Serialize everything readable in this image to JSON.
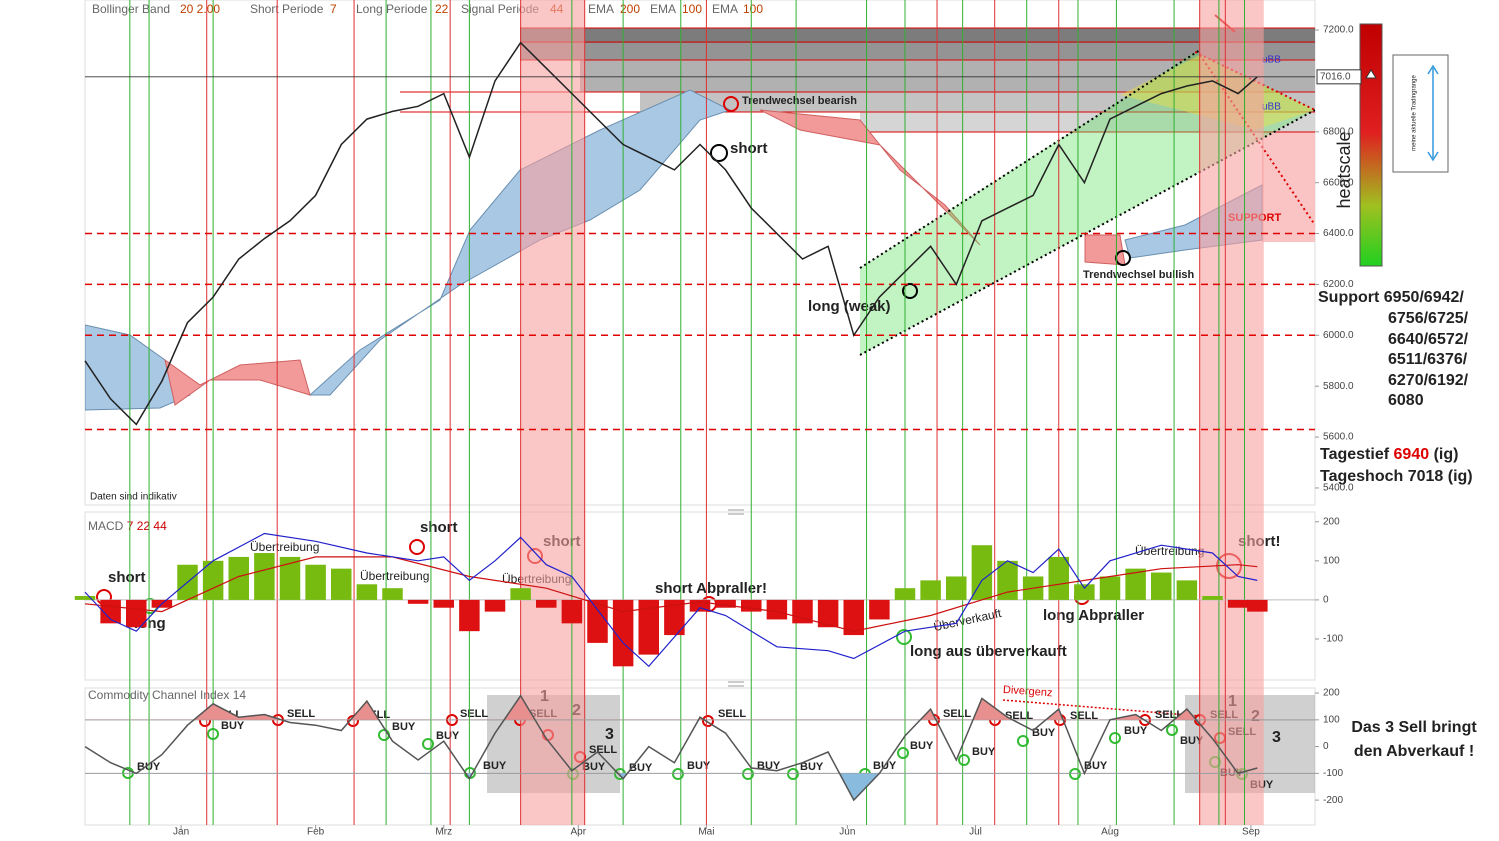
{
  "header": [
    "Bollinger Band",
    "20  2.00",
    "Short Periode",
    "7",
    "Long Periode",
    "22",
    "Signal Periode",
    "44",
    "EMA",
    "200",
    "EMA",
    "100",
    "EMA",
    "100"
  ],
  "price_annotations": [
    "Trendwechsel bearish",
    "short",
    "long (weak)",
    "Trendwechsel bullish",
    "SUPPORT",
    "uBB",
    "uBB",
    "Daten sind indikativ"
  ],
  "heatscale": "heatscale",
  "tradingrange": "meine aktuelle Tradingrange",
  "support_levels": [
    "Support 6950/6942/",
    "6756/6725/",
    "6640/6572/",
    "6511/6376/",
    "6270/6192/",
    "6080"
  ],
  "daily_low": {
    "label": "Tagestief",
    "value": "6940",
    "suffix": "(ig)"
  },
  "daily_high": "Tageshoch 7018 (ig)",
  "conclusion": [
    "Das 3 Sell bringt",
    "den Abverkauf !"
  ],
  "macd_annotations": [
    "short",
    "long",
    "Übertreibung",
    "Übertreibung",
    "short",
    "Übertreibung",
    "short",
    "short Abpraller!",
    "Überverkauft",
    "long aus überverkauft",
    "long Abpraller",
    "Übertreibung",
    "short!"
  ],
  "cci_annotations": [
    "Divergenz"
  ],
  "cci_signal_labels": [
    "BUY",
    "SELL",
    "BUY",
    "SELL",
    "SELL",
    "BUY",
    "BUY",
    "SELL",
    "BUY",
    "1",
    "SELL",
    "2",
    "3",
    "SELL",
    "BUY",
    "BUY",
    "BUY",
    "SELL",
    "BUY",
    "BUY",
    "BUY",
    "BUY",
    "SELL",
    "BUY",
    "SELL",
    "BUY",
    "SELL",
    "BUY",
    "BUY",
    "SELL",
    "BUY",
    "1",
    "SELL",
    "2",
    "SELL",
    "3",
    "BUY",
    "BUY"
  ],
  "chart_data": [
    {
      "type": "line",
      "color": "#222",
      "x": [
        0,
        4,
        8,
        12,
        16,
        20,
        24,
        28,
        32,
        36,
        40,
        44,
        48,
        52,
        56,
        60,
        64,
        68,
        72,
        76,
        80,
        84,
        88,
        92,
        96,
        100,
        104,
        108,
        112,
        116,
        120,
        124,
        128,
        132,
        136,
        140,
        144,
        148,
        152,
        156,
        160,
        164,
        168,
        172,
        176,
        180,
        183
      ],
      "values": [
        5900,
        5750,
        5650,
        5820,
        6050,
        6150,
        6300,
        6380,
        6450,
        6550,
        6750,
        6850,
        6880,
        6900,
        6950,
        6700,
        7000,
        7150,
        7050,
        6950,
        6850,
        6750,
        6700,
        6650,
        6750,
        6650,
        6500,
        6400,
        6300,
        6350,
        6000,
        6150,
        6250,
        6350,
        6200,
        6450,
        6500,
        6550,
        6750,
        6600,
        6850,
        6900,
        6950,
        6980,
        7000,
        6950,
        7016
      ],
      "xlim": [
        0,
        192
      ],
      "ylim": [
        5333,
        7318
      ],
      "yticks": [
        {
          "value": 5400,
          "label": "5400.0"
        },
        {
          "value": 5600,
          "label": "5600.0"
        },
        {
          "value": 5800,
          "label": "5800.0"
        },
        {
          "value": 6000,
          "label": "6000.0"
        },
        {
          "value": 6200,
          "label": "6200.0"
        },
        {
          "value": 6400,
          "label": "6400.0"
        },
        {
          "value": 6600,
          "label": "6600.0"
        },
        {
          "value": 6800,
          "label": "6800.0"
        },
        {
          "value": 7200,
          "label": "7200.0"
        }
      ],
      "last_price": {
        "value": 7016,
        "label": "7016.0"
      },
      "hlines": [
        6400,
        6200,
        6000,
        5630
      ],
      "hline_color": "#e00000",
      "sell_signals": [
        19,
        30,
        42,
        57,
        68,
        78,
        97,
        133,
        142,
        152,
        174,
        178
      ],
      "buy_signals": [
        7,
        10,
        20,
        47,
        54,
        60,
        76,
        84,
        93,
        104,
        111,
        122,
        128,
        137,
        147,
        155,
        161,
        170,
        177,
        181
      ],
      "sell_color": "#e03030",
      "buy_color": "#30b030",
      "highlight_ranges": [
        [
          68,
          78
        ],
        [
          174,
          184
        ]
      ],
      "highlight_color": "#f8a0a0"
    },
    {
      "type": "bar",
      "title": "MACD",
      "params": [
        "7",
        "22",
        "44"
      ],
      "x": [
        0,
        4,
        8,
        12,
        16,
        20,
        24,
        28,
        32,
        36,
        40,
        44,
        48,
        52,
        56,
        60,
        64,
        68,
        72,
        76,
        80,
        84,
        88,
        92,
        96,
        100,
        104,
        108,
        112,
        116,
        120,
        124,
        128,
        132,
        136,
        140,
        144,
        148,
        152,
        156,
        160,
        164,
        168,
        172,
        176,
        180,
        183
      ],
      "values": [
        10,
        -60,
        -70,
        -20,
        90,
        100,
        110,
        120,
        110,
        90,
        80,
        40,
        30,
        -10,
        -20,
        -80,
        -30,
        30,
        -20,
        -60,
        -110,
        -170,
        -140,
        -90,
        -30,
        -20,
        -30,
        -50,
        -60,
        -70,
        -90,
        -50,
        30,
        50,
        60,
        140,
        100,
        60,
        110,
        40,
        60,
        80,
        70,
        50,
        10,
        -20,
        -30
      ],
      "positive_color": "#77bb11",
      "negative_color": "#dd1111",
      "lines": [
        {
          "color": "#cc1111",
          "x": [
            0,
            12,
            24,
            36,
            48,
            60,
            72,
            84,
            96,
            108,
            120,
            132,
            144,
            156,
            168,
            180,
            183
          ],
          "values": [
            -10,
            -30,
            60,
            110,
            110,
            60,
            30,
            -30,
            -5,
            -30,
            -80,
            -40,
            20,
            50,
            80,
            90,
            85
          ]
        },
        {
          "color": "#2222cc",
          "x": [
            0,
            4,
            8,
            12,
            20,
            28,
            36,
            44,
            52,
            56,
            60,
            64,
            68,
            72,
            76,
            84,
            88,
            96,
            100,
            108,
            116,
            120,
            128,
            136,
            140,
            144,
            148,
            152,
            156,
            160,
            168,
            176,
            180,
            183
          ],
          "values": [
            20,
            -50,
            -80,
            -10,
            100,
            170,
            150,
            120,
            100,
            110,
            50,
            100,
            160,
            90,
            60,
            -110,
            -170,
            -20,
            -40,
            -120,
            -130,
            -150,
            -80,
            -60,
            50,
            100,
            70,
            130,
            30,
            100,
            140,
            120,
            60,
            50
          ]
        }
      ],
      "xlim": [
        0,
        192
      ],
      "ylim": [
        -205,
        225
      ],
      "yticks": [
        -100,
        0,
        100,
        200
      ]
    },
    {
      "type": "line",
      "title": "Commodity Channel Index",
      "param": "14",
      "color": "#555",
      "x": [
        0,
        4,
        8,
        12,
        16,
        20,
        24,
        28,
        32,
        36,
        40,
        44,
        48,
        52,
        56,
        60,
        64,
        68,
        72,
        76,
        80,
        84,
        88,
        92,
        96,
        100,
        104,
        108,
        112,
        116,
        120,
        124,
        128,
        132,
        136,
        140,
        144,
        148,
        152,
        156,
        160,
        164,
        168,
        172,
        176,
        180,
        183
      ],
      "values": [
        0,
        -60,
        -100,
        -30,
        80,
        160,
        110,
        120,
        90,
        80,
        60,
        170,
        20,
        -50,
        20,
        -120,
        50,
        190,
        30,
        -90,
        -20,
        -120,
        0,
        -60,
        110,
        50,
        -80,
        -90,
        -60,
        -20,
        -200,
        -100,
        40,
        140,
        -50,
        180,
        110,
        60,
        140,
        -100,
        100,
        120,
        60,
        140,
        30,
        -100,
        -80
      ],
      "levels": [
        100,
        -100
      ],
      "upper_fill": "#e89090",
      "lower_fill": "#88bbdd",
      "xlim": [
        0,
        192
      ],
      "ylim": [
        -293,
        219
      ],
      "yticks": [
        -200,
        -100,
        0,
        100,
        200
      ],
      "xticks": [
        {
          "value": 15,
          "label": "Jan"
        },
        {
          "value": 36,
          "label": "Feb"
        },
        {
          "value": 56,
          "label": "Mrz"
        },
        {
          "value": 77,
          "label": "Apr"
        },
        {
          "value": 97,
          "label": "Mai"
        },
        {
          "value": 119,
          "label": "Jun"
        },
        {
          "value": 139,
          "label": "Jul"
        },
        {
          "value": 160,
          "label": "Aug"
        },
        {
          "value": 182,
          "label": "Sep"
        }
      ]
    }
  ]
}
